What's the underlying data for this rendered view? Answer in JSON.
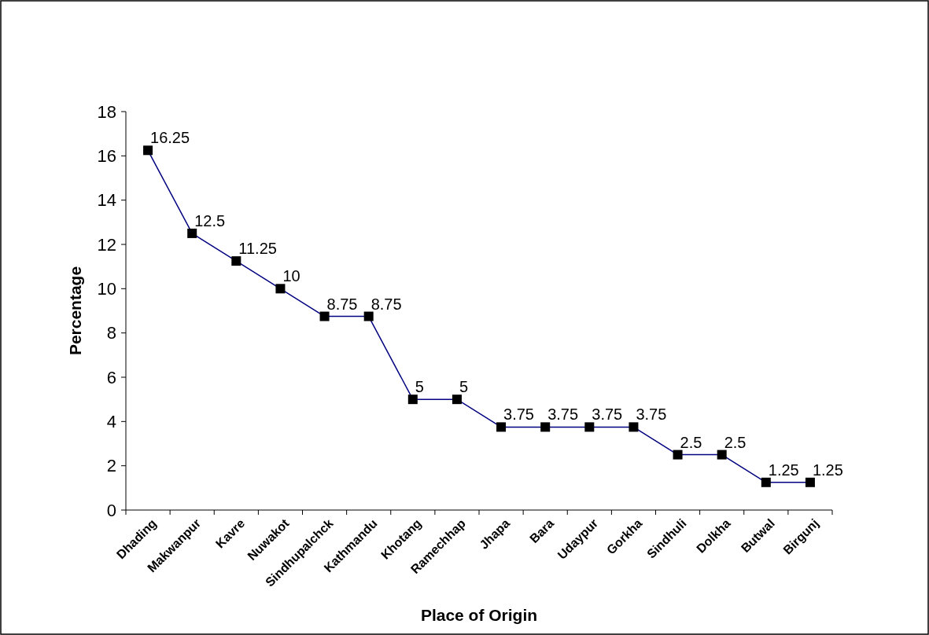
{
  "chart_data": {
    "type": "line",
    "xlabel": "Place of Origin",
    "ylabel": "Percentage",
    "categories": [
      "Dhading",
      "Makwanpur",
      "Kavre",
      "Nuwakot",
      "Sindhupalchck",
      "Kathmandu",
      "Khotang",
      "Ramechhap",
      "Jhapa",
      "Bara",
      "Udaypur",
      "Gorkha",
      "Sindhuli",
      "Dolkha",
      "Butwal",
      "Birgunj"
    ],
    "series": [
      {
        "color": "#000080",
        "values": [
          16.25,
          12.5,
          11.25,
          10,
          8.75,
          8.75,
          5,
          5,
          3.75,
          3.75,
          3.75,
          3.75,
          2.5,
          2.5,
          1.25,
          1.25
        ]
      }
    ],
    "ylim": [
      0,
      18
    ],
    "yticks": [
      0,
      2,
      4,
      6,
      8,
      10,
      12,
      14,
      16,
      18
    ],
    "marker": "square",
    "line_style": "solid",
    "data_labels": true
  }
}
